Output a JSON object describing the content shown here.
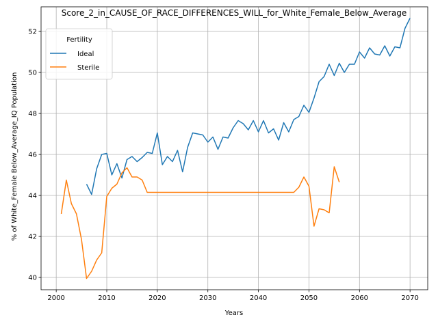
{
  "chart_data": {
    "type": "line",
    "title": "Score_2_in_CAUSE_OF_RACE_DIFFERENCES_WILL_for_White_Female_Below_Average",
    "xlabel": "Years",
    "ylabel": "% of White_Female Below_Average_IQ Population",
    "xlim": [
      1997,
      2073.5
    ],
    "ylim": [
      39.4,
      53.2
    ],
    "xticks": [
      2000,
      2010,
      2020,
      2030,
      2040,
      2050,
      2060,
      2070
    ],
    "yticks": [
      40,
      42,
      44,
      46,
      48,
      50,
      52
    ],
    "grid": true,
    "legend": {
      "title": "Fertility",
      "placement": "top-left"
    },
    "series": [
      {
        "name": "Ideal",
        "color": "#1f77b4",
        "x": [
          2006,
          2007,
          2008,
          2009,
          2010,
          2011,
          2012,
          2013,
          2014,
          2015,
          2016,
          2017,
          2018,
          2019,
          2020,
          2021,
          2022,
          2023,
          2024,
          2025,
          2026,
          2027,
          2028,
          2029,
          2030,
          2031,
          2032,
          2033,
          2034,
          2035,
          2036,
          2037,
          2038,
          2039,
          2040,
          2041,
          2042,
          2043,
          2044,
          2045,
          2046,
          2047,
          2048,
          2049,
          2050,
          2051,
          2052,
          2053,
          2054,
          2055,
          2056,
          2057,
          2058,
          2059,
          2060,
          2061,
          2062,
          2063,
          2064,
          2065,
          2066,
          2067,
          2068,
          2069,
          2070
        ],
        "values": [
          44.55,
          44.05,
          45.3,
          46.0,
          46.05,
          45.0,
          45.55,
          44.85,
          45.75,
          45.9,
          45.65,
          45.85,
          46.1,
          46.05,
          47.05,
          45.5,
          45.9,
          45.65,
          46.2,
          45.15,
          46.35,
          47.05,
          47.0,
          46.95,
          46.6,
          46.85,
          46.25,
          46.85,
          46.8,
          47.3,
          47.65,
          47.5,
          47.2,
          47.65,
          47.1,
          47.65,
          47.05,
          47.25,
          46.7,
          47.55,
          47.1,
          47.7,
          47.85,
          48.4,
          48.05,
          48.75,
          49.55,
          49.8,
          50.4,
          49.85,
          50.45,
          50.0,
          50.4,
          50.4,
          51.0,
          50.7,
          51.2,
          50.9,
          50.85,
          51.3,
          50.8,
          51.25,
          51.2,
          52.15,
          52.65
        ]
      },
      {
        "name": "Sterile",
        "color": "#ff7f0e",
        "x": [
          2001,
          2002,
          2003,
          2004,
          2005,
          2006,
          2007,
          2008,
          2009,
          2010,
          2011,
          2012,
          2013,
          2014,
          2015,
          2016,
          2017,
          2018,
          2019,
          2020,
          2021,
          2022,
          2023,
          2024,
          2025,
          2026,
          2027,
          2028,
          2029,
          2030,
          2031,
          2032,
          2033,
          2034,
          2035,
          2036,
          2037,
          2038,
          2039,
          2040,
          2041,
          2042,
          2043,
          2044,
          2045,
          2046,
          2047,
          2048,
          2049,
          2050,
          2051,
          2052,
          2053,
          2054,
          2055,
          2056
        ],
        "values": [
          43.1,
          44.75,
          43.6,
          43.1,
          41.85,
          39.95,
          40.3,
          40.85,
          41.2,
          43.95,
          44.35,
          44.55,
          45.1,
          45.35,
          44.9,
          44.9,
          44.75,
          44.15,
          44.15,
          44.15,
          44.15,
          44.15,
          44.15,
          44.15,
          44.15,
          44.15,
          44.15,
          44.15,
          44.15,
          44.15,
          44.15,
          44.15,
          44.15,
          44.15,
          44.15,
          44.15,
          44.15,
          44.15,
          44.15,
          44.15,
          44.15,
          44.15,
          44.15,
          44.15,
          44.15,
          44.15,
          44.15,
          44.4,
          44.9,
          44.45,
          42.5,
          43.35,
          43.3,
          43.15,
          45.4,
          44.65
        ]
      }
    ]
  }
}
